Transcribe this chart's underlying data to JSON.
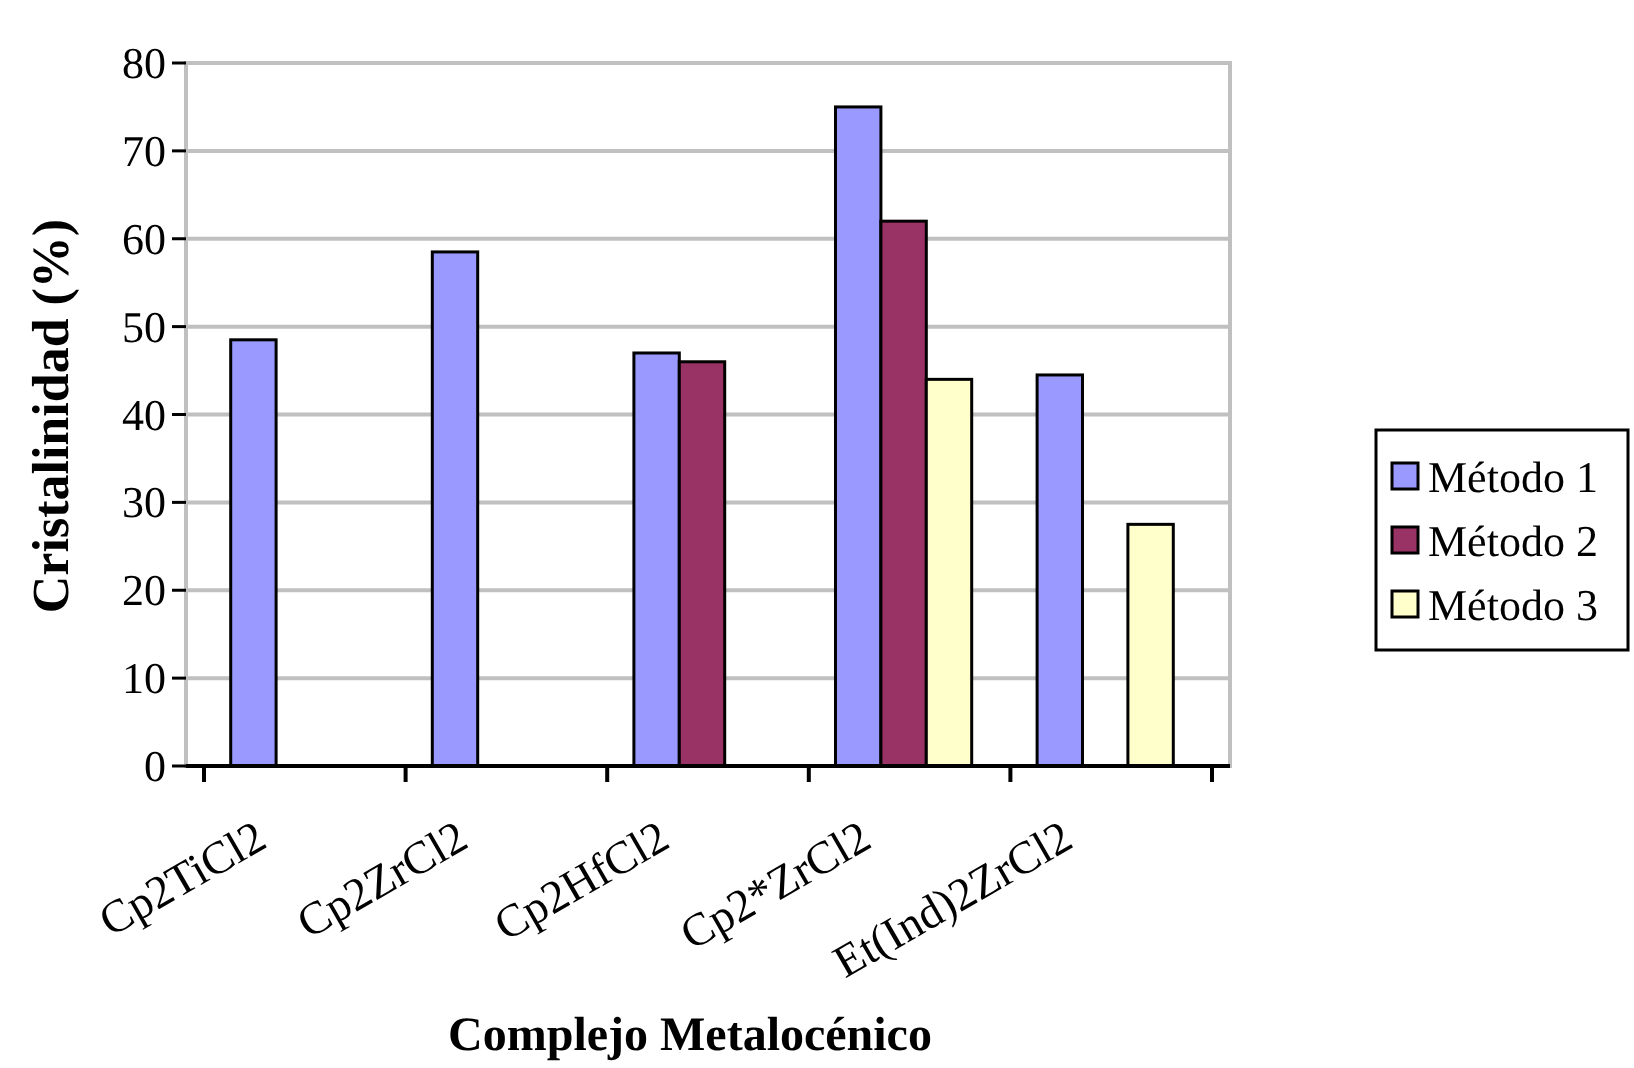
{
  "chart_data": {
    "type": "bar",
    "categories": [
      "Cp2TiCl2",
      "Cp2ZrCl2",
      "Cp2HfCl2",
      "Cp2*ZrCl2",
      "Et(Ind)2ZrCl2"
    ],
    "series": [
      {
        "name": "Método 1",
        "color": "#9999ff",
        "values": [
          48.5,
          58.5,
          47,
          75,
          44.5
        ]
      },
      {
        "name": "Método 2",
        "color": "#993366",
        "values": [
          null,
          null,
          46,
          62,
          null
        ]
      },
      {
        "name": "Método 3",
        "color": "#ffffcc",
        "values": [
          null,
          null,
          null,
          44,
          27.5
        ]
      }
    ],
    "xlabel": "Complejo Metalocénico",
    "ylabel": "Cristalinidad (%)",
    "ylim": [
      0,
      80
    ],
    "yticks": [
      0,
      10,
      20,
      30,
      40,
      50,
      60,
      70,
      80
    ],
    "grid": "y",
    "legend": "right"
  }
}
